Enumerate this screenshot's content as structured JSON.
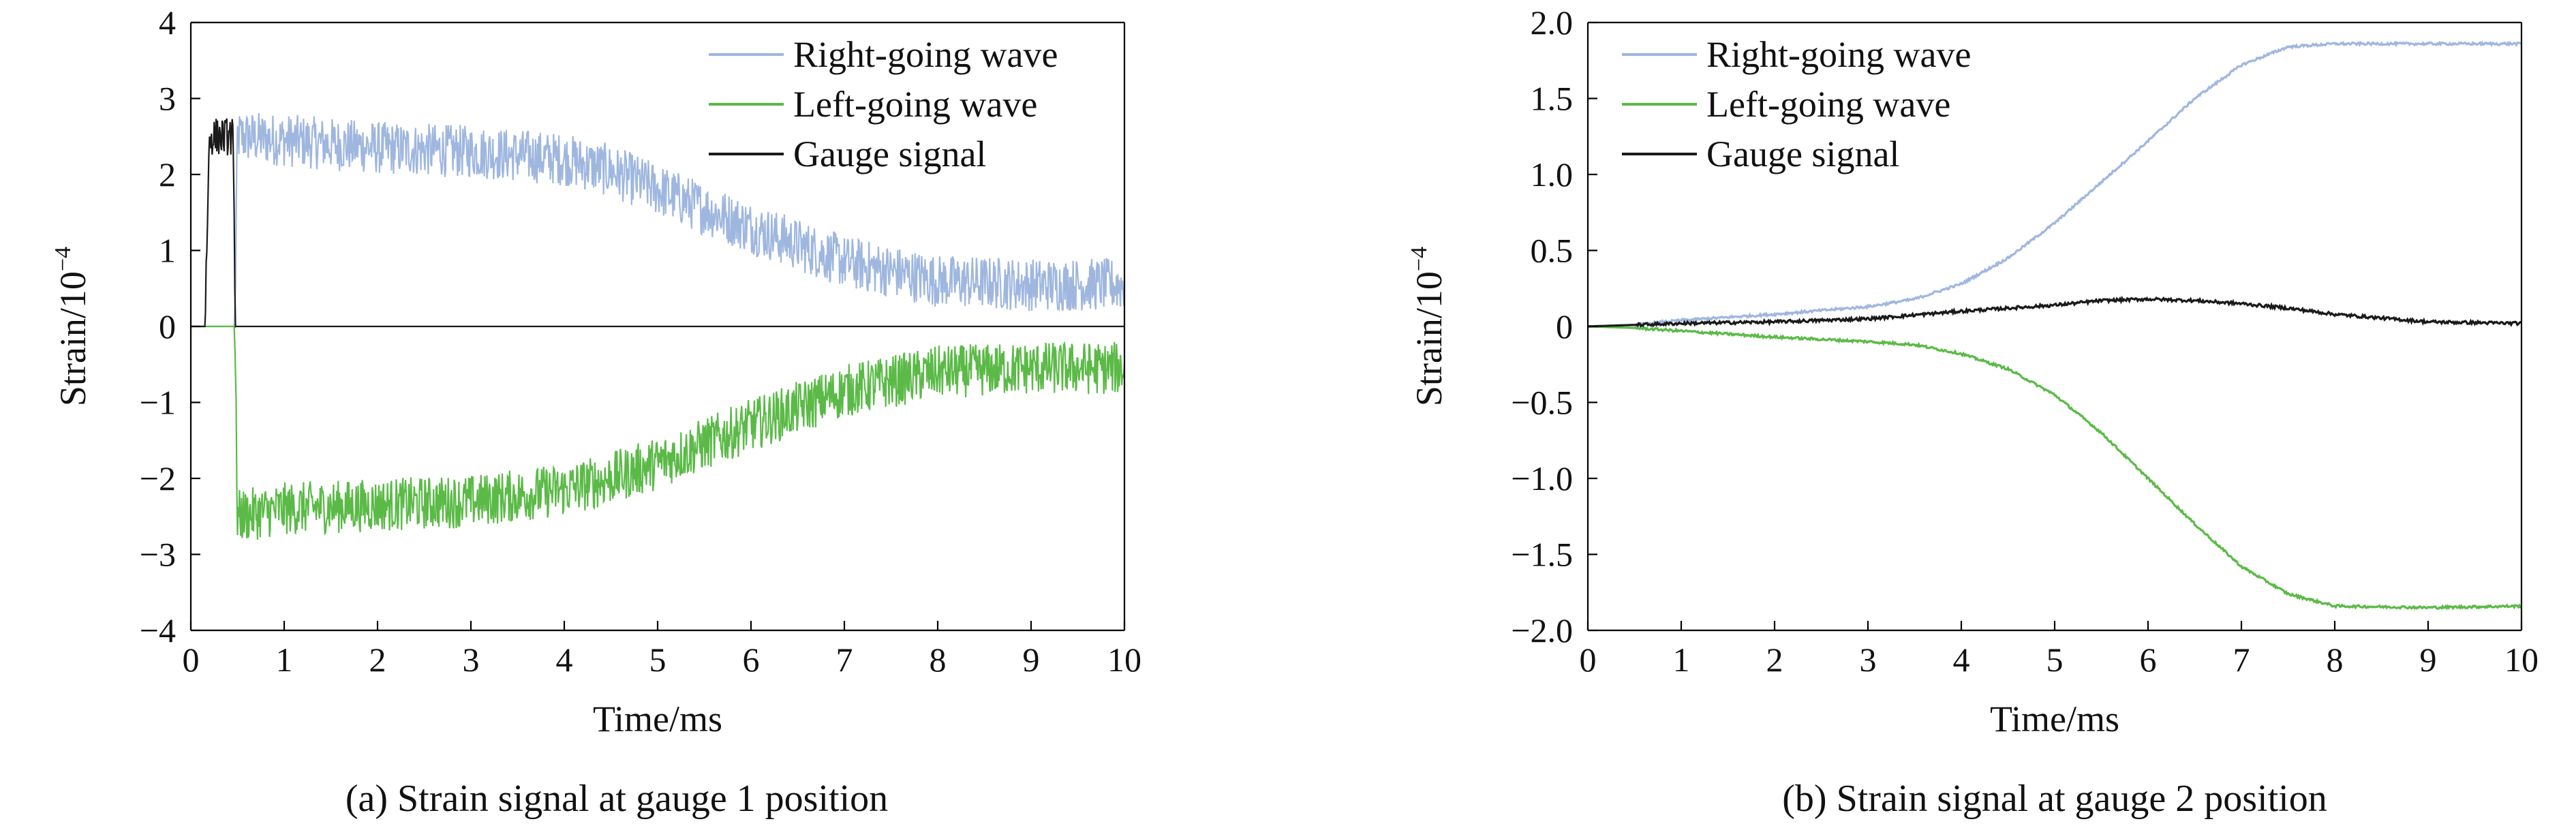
{
  "chart_data": [
    {
      "type": "line",
      "caption": "(a) Strain signal at gauge 1 position",
      "xlabel": "Time/ms",
      "ylabel": "Strain/10",
      "ylabel_exponent": "−4",
      "xlim": [
        0,
        10
      ],
      "ylim": [
        -4,
        4
      ],
      "x_ticks": [
        0,
        1,
        2,
        3,
        4,
        5,
        6,
        7,
        8,
        9,
        10
      ],
      "x_tick_labels": [
        "0",
        "1",
        "2",
        "3",
        "4",
        "5",
        "6",
        "7",
        "8",
        "9",
        "10"
      ],
      "y_ticks": [
        4,
        3,
        2,
        1,
        0,
        -1,
        -2,
        -3,
        -4
      ],
      "y_tick_labels": [
        "4",
        "3",
        "2",
        "1",
        "0",
        "−1",
        "−2",
        "−3",
        "−4"
      ],
      "grid": false,
      "legend_position": "top-right",
      "series": [
        {
          "name": "Right-going wave",
          "color": "#9fb7df",
          "noise": 0.35,
          "x": [
            0,
            0.47,
            0.5,
            1,
            2,
            3,
            4,
            4.5,
            5,
            6,
            7,
            8,
            9,
            10
          ],
          "values": [
            0,
            0,
            2.5,
            2.45,
            2.35,
            2.3,
            2.2,
            2.05,
            1.8,
            1.3,
            0.85,
            0.6,
            0.55,
            0.55
          ]
        },
        {
          "name": "Left-going wave",
          "color": "#5bba47",
          "noise": 0.35,
          "x": [
            0,
            0.47,
            0.5,
            1,
            2,
            3,
            4,
            4.5,
            5,
            6,
            7,
            8,
            9,
            10
          ],
          "values": [
            0,
            0,
            -2.5,
            -2.4,
            -2.35,
            -2.3,
            -2.15,
            -2.0,
            -1.8,
            -1.3,
            -0.85,
            -0.6,
            -0.55,
            -0.55
          ]
        },
        {
          "name": "Gauge signal",
          "color": "#1a1a1a",
          "noise": 0.25,
          "x": [
            0,
            0.15,
            0.2,
            0.45,
            0.48,
            1,
            3,
            5,
            7,
            10
          ],
          "values": [
            0,
            0,
            2.5,
            2.5,
            0,
            0,
            0,
            0,
            0,
            0
          ]
        }
      ]
    },
    {
      "type": "line",
      "caption": "(b) Strain signal at gauge 2 position",
      "xlabel": "Time/ms",
      "ylabel": "Strain/10",
      "ylabel_exponent": "−4",
      "xlim": [
        0,
        10
      ],
      "ylim": [
        -2,
        2
      ],
      "x_ticks": [
        0,
        1,
        2,
        3,
        4,
        5,
        6,
        7,
        8,
        9,
        10
      ],
      "x_tick_labels": [
        "0",
        "1",
        "2",
        "3",
        "4",
        "5",
        "6",
        "7",
        "8",
        "9",
        "10"
      ],
      "y_ticks": [
        2,
        1.5,
        1,
        0.5,
        0,
        -0.5,
        -1,
        -1.5,
        -2
      ],
      "y_tick_labels": [
        "2.0",
        "1.5",
        "1.0",
        "0.5",
        "0",
        "−0.5",
        "−1.0",
        "−1.5",
        "−2.0"
      ],
      "grid": false,
      "legend_position": "top-left",
      "series": [
        {
          "name": "Right-going wave",
          "color": "#9fb7df",
          "noise": 0.008,
          "x": [
            0,
            0.5,
            1,
            2,
            3,
            3.5,
            4,
            4.5,
            5,
            5.5,
            6,
            6.5,
            7,
            7.5,
            8,
            9,
            10
          ],
          "values": [
            0,
            0.01,
            0.04,
            0.08,
            0.13,
            0.18,
            0.28,
            0.45,
            0.68,
            0.95,
            1.22,
            1.5,
            1.72,
            1.84,
            1.86,
            1.86,
            1.86
          ]
        },
        {
          "name": "Left-going wave",
          "color": "#5bba47",
          "noise": 0.008,
          "x": [
            0,
            0.5,
            1,
            2,
            3,
            3.5,
            4,
            4.5,
            5,
            5.5,
            6,
            6.5,
            7,
            7.5,
            8,
            9,
            10
          ],
          "values": [
            0,
            -0.01,
            -0.03,
            -0.07,
            -0.1,
            -0.12,
            -0.18,
            -0.28,
            -0.45,
            -0.7,
            -1.0,
            -1.3,
            -1.58,
            -1.76,
            -1.84,
            -1.85,
            -1.84
          ]
        },
        {
          "name": "Gauge signal",
          "color": "#1a1a1a",
          "noise": 0.01,
          "x": [
            0,
            1,
            2,
            3,
            4,
            5,
            5.5,
            6,
            6.5,
            7,
            7.5,
            8,
            9,
            10
          ],
          "values": [
            0,
            0.02,
            0.03,
            0.05,
            0.1,
            0.14,
            0.17,
            0.18,
            0.17,
            0.15,
            0.12,
            0.08,
            0.03,
            0.02
          ]
        }
      ]
    }
  ]
}
